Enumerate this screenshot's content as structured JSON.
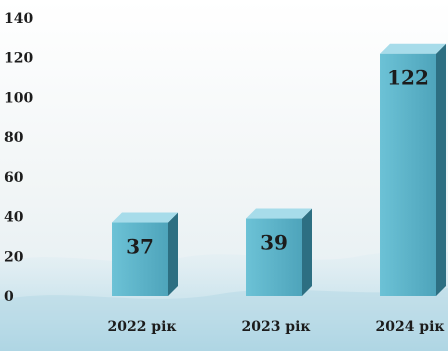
{
  "chart_data": {
    "type": "bar",
    "categories": [
      "2022 рік",
      "2023 рік",
      "2024 рік"
    ],
    "values": [
      37,
      39,
      122
    ],
    "ylim": [
      0,
      140
    ],
    "yticks": [
      0,
      20,
      40,
      60,
      80,
      100,
      120,
      140
    ],
    "title": "",
    "xlabel": "",
    "ylabel": "",
    "grid": false,
    "legend": "none",
    "bar_colors": {
      "front": "#5bb3c9",
      "side": "#2d6f82",
      "top": "#a7dcea"
    },
    "background_color": "#f3f6f7",
    "water_color": "#b7d9e6"
  }
}
